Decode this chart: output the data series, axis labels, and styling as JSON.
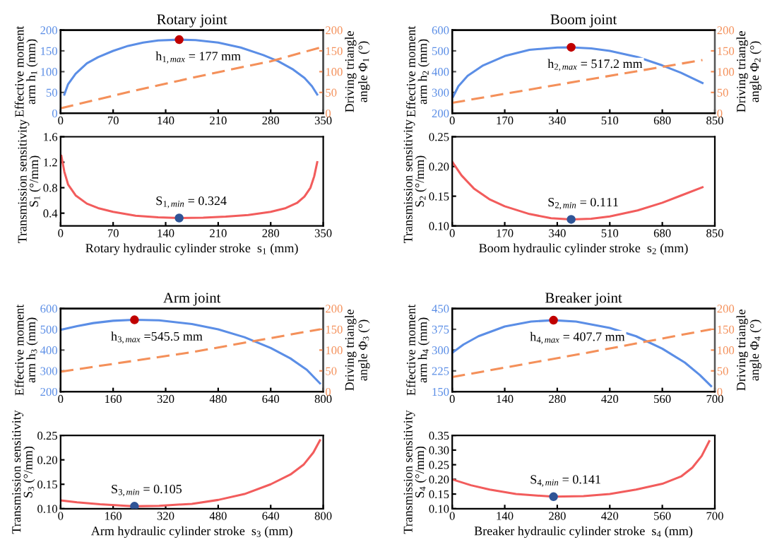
{
  "chart_data": [
    {
      "type": "line",
      "title": "Rotary joint",
      "ylabel": "Effective moment\narm h$_{1}$ (mm)",
      "y2label": "Driving triangle\nangle Φ$_{1}$ (°)",
      "xlim": [
        0,
        350
      ],
      "xticks": [
        0,
        70,
        140,
        210,
        280,
        350
      ],
      "ylim": [
        0,
        200
      ],
      "yticks": [
        0,
        50,
        100,
        150,
        200
      ],
      "y2lim": [
        0,
        200
      ],
      "y2ticks": [
        0,
        50,
        100,
        150,
        200
      ],
      "series": [
        {
          "color": "#5b8ee6",
          "x": [
            5,
            10,
            20,
            35,
            50,
            70,
            90,
            110,
            130,
            158,
            180,
            210,
            240,
            270,
            290,
            310,
            325,
            335,
            342
          ],
          "values": [
            45,
            70,
            95,
            120,
            135,
            150,
            162,
            170,
            175,
            177,
            176,
            170,
            158,
            140,
            125,
            105,
            85,
            65,
            45
          ]
        },
        {
          "color": "#f4905a",
          "axis": "y2",
          "line_style": "dashed",
          "x": [
            0,
            100,
            200,
            280,
            350
          ],
          "values": [
            12,
            55,
            95,
            125,
            160
          ]
        },
        {
          "type": "scatter",
          "marker": "circle",
          "color": "#c00000",
          "x": [
            158
          ],
          "values": [
            177
          ]
        }
      ],
      "annotations": [
        {
          "text": "h$_{1,max}$ = 177 mm",
          "x": 158,
          "y": 177
        }
      ]
    },
    {
      "type": "line",
      "ylabel": "Transmission sensitivity\nS$_{1}$ (°/mm)",
      "xlabel": "Rotary hydraulic cylinder stroke  s$_{1}$ (mm)",
      "xlim": [
        0,
        350
      ],
      "xticks": [
        0,
        70,
        140,
        210,
        280,
        350
      ],
      "ylim": [
        0.2,
        1.6
      ],
      "yticks": [
        0.4,
        0.8,
        1.2,
        1.6
      ],
      "series": [
        {
          "color": "#f25c5c",
          "x": [
            1,
            5,
            10,
            20,
            35,
            50,
            70,
            100,
            130,
            158,
            190,
            220,
            250,
            280,
            300,
            315,
            325,
            333,
            338,
            342
          ],
          "values": [
            1.3,
            1.05,
            0.85,
            0.68,
            0.55,
            0.48,
            0.42,
            0.36,
            0.335,
            0.324,
            0.33,
            0.345,
            0.37,
            0.42,
            0.48,
            0.56,
            0.66,
            0.8,
            0.98,
            1.2
          ]
        },
        {
          "type": "scatter",
          "marker": "circle",
          "color": "#2f5597",
          "x": [
            158
          ],
          "values": [
            0.324
          ]
        }
      ],
      "annotations": [
        {
          "text": "S$_{1,min}$ = 0.324",
          "x": 158,
          "y": 0.324
        }
      ]
    },
    {
      "type": "line",
      "title": "Boom joint",
      "ylabel": "Effective moment\narm h$_{2}$ (mm)",
      "y2label": "Driving triangle\nangle Φ$_{2}$ (°)",
      "xlim": [
        0,
        850
      ],
      "xticks": [
        0,
        170,
        340,
        510,
        680,
        850
      ],
      "ylim": [
        200,
        600
      ],
      "yticks": [
        200,
        300,
        400,
        500,
        600
      ],
      "y2lim": [
        0,
        200
      ],
      "y2ticks": [
        0,
        50,
        100,
        150,
        200
      ],
      "series": [
        {
          "color": "#5b8ee6",
          "x": [
            3,
            20,
            50,
            100,
            170,
            250,
            340,
            385,
            450,
            510,
            600,
            680,
            740,
            810
          ],
          "values": [
            280,
            330,
            380,
            430,
            475,
            505,
            516,
            517.2,
            512,
            500,
            470,
            430,
            395,
            345
          ]
        },
        {
          "color": "#f4905a",
          "axis": "y2",
          "line_style": "dashed",
          "x": [
            0,
            400,
            810
          ],
          "values": [
            25,
            76,
            128
          ]
        },
        {
          "type": "scatter",
          "marker": "circle",
          "color": "#c00000",
          "x": [
            385
          ],
          "values": [
            517.2
          ]
        }
      ],
      "annotations": [
        {
          "text": "h$_{2,max}$ = 517.2 mm",
          "x": 385,
          "y": 517.2
        }
      ]
    },
    {
      "type": "line",
      "ylabel": "Transmission sensitivity\nS$_{2}$ (°/mm)",
      "xlabel": "Boom hydraulic cylinder stroke  s$_{2}$ (mm)",
      "xlim": [
        0,
        850
      ],
      "xticks": [
        0,
        170,
        340,
        510,
        680,
        850
      ],
      "ylim": [
        0.1,
        0.25
      ],
      "yticks": [
        {
          "value": 0.1,
          "label": "0.10"
        },
        {
          "value": 0.15,
          "label": "0.15"
        },
        {
          "value": 0.2,
          "label": "0.20"
        },
        {
          "value": 0.25,
          "label": "0.25"
        }
      ],
      "series": [
        {
          "color": "#f25c5c",
          "x": [
            0,
            30,
            70,
            120,
            170,
            250,
            320,
            385,
            450,
            510,
            600,
            680,
            740,
            810
          ],
          "values": [
            0.208,
            0.185,
            0.163,
            0.145,
            0.133,
            0.12,
            0.113,
            0.111,
            0.112,
            0.116,
            0.126,
            0.139,
            0.151,
            0.165
          ]
        },
        {
          "type": "scatter",
          "marker": "circle",
          "color": "#2f5597",
          "x": [
            385
          ],
          "values": [
            0.111
          ]
        }
      ],
      "annotations": [
        {
          "text": "S$_{2,min}$ = 0.111",
          "x": 385,
          "y": 0.111
        }
      ]
    },
    {
      "type": "line",
      "title": "Arm joint",
      "ylabel": "Effective moment\narm h$_{3}$ (mm)",
      "y2label": "Driving triangle\nangle Φ$_{3}$ (°)",
      "xlim": [
        0,
        800
      ],
      "xticks": [
        0,
        160,
        320,
        480,
        640,
        800
      ],
      "ylim": [
        200,
        600
      ],
      "yticks": [
        200,
        300,
        400,
        500,
        600
      ],
      "y2lim": [
        0,
        200
      ],
      "y2ticks": [
        0,
        50,
        100,
        150,
        200
      ],
      "series": [
        {
          "color": "#5b8ee6",
          "x": [
            0,
            50,
            100,
            160,
            225,
            300,
            400,
            480,
            560,
            640,
            700,
            750,
            790
          ],
          "values": [
            497,
            515,
            530,
            541,
            545.5,
            543,
            525,
            500,
            462,
            410,
            360,
            305,
            240
          ]
        },
        {
          "color": "#f4905a",
          "axis": "y2",
          "line_style": "dashed",
          "x": [
            0,
            400,
            790
          ],
          "values": [
            48,
            95,
            150
          ]
        },
        {
          "type": "scatter",
          "marker": "circle",
          "color": "#c00000",
          "x": [
            225
          ],
          "values": [
            545.5
          ]
        }
      ],
      "annotations": [
        {
          "text": "h$_{3,max}$ =545.5 mm",
          "x": 225,
          "y": 545.5
        }
      ]
    },
    {
      "type": "line",
      "ylabel": "Transmission sensitivity\nS$_{3}$ (°/mm)",
      "xlabel": "Arm hydraulic cylinder stroke  s$_{3}$ (mm)",
      "xlim": [
        0,
        800
      ],
      "xticks": [
        0,
        160,
        320,
        480,
        640,
        800
      ],
      "ylim": [
        0.1,
        0.25
      ],
      "yticks": [
        {
          "value": 0.1,
          "label": "0.10"
        },
        {
          "value": 0.15,
          "label": "0.15"
        },
        {
          "value": 0.2,
          "label": "0.20"
        },
        {
          "value": 0.25,
          "label": "0.25"
        }
      ],
      "series": [
        {
          "color": "#f25c5c",
          "x": [
            0,
            50,
            120,
            200,
            225,
            300,
            400,
            480,
            560,
            640,
            700,
            740,
            770,
            790
          ],
          "values": [
            0.117,
            0.113,
            0.109,
            0.106,
            0.105,
            0.106,
            0.11,
            0.118,
            0.13,
            0.15,
            0.17,
            0.19,
            0.215,
            0.24
          ]
        },
        {
          "type": "scatter",
          "marker": "circle",
          "color": "#2f5597",
          "x": [
            225
          ],
          "values": [
            0.105
          ]
        }
      ],
      "annotations": [
        {
          "text": "S$_{3,min}$ = 0.105",
          "x": 225,
          "y": 0.105
        }
      ]
    },
    {
      "type": "line",
      "title": "Breaker joint",
      "ylabel": "Effective moment\narm h$_{4}$ (mm)",
      "y2label": "Driving triangle\nangle Φ$_{4}$ (°)",
      "xlim": [
        0,
        700
      ],
      "xticks": [
        0,
        140,
        280,
        420,
        560,
        700
      ],
      "ylim": [
        150,
        450
      ],
      "yticks": [
        150,
        225,
        300,
        375,
        450
      ],
      "y2lim": [
        0,
        200
      ],
      "y2ticks": [
        0,
        50,
        100,
        150,
        200
      ],
      "series": [
        {
          "color": "#5b8ee6",
          "x": [
            0,
            30,
            70,
            140,
            210,
            270,
            330,
            420,
            490,
            560,
            620,
            660,
            690
          ],
          "values": [
            290,
            320,
            350,
            385,
            403,
            407.7,
            403,
            380,
            350,
            305,
            255,
            210,
            170
          ]
        },
        {
          "color": "#f4905a",
          "axis": "y2",
          "line_style": "dashed",
          "x": [
            0,
            350,
            690
          ],
          "values": [
            35,
            92,
            150
          ]
        },
        {
          "type": "scatter",
          "marker": "circle",
          "color": "#c00000",
          "x": [
            270
          ],
          "values": [
            407.7
          ]
        }
      ],
      "annotations": [
        {
          "text": "h$_{4,max}$ = 407.7 mm",
          "x": 270,
          "y": 407.7
        }
      ]
    },
    {
      "type": "line",
      "ylabel": "Transmission sensitivity\nS$_{4}$ (°/mm)",
      "xlabel": "Breaker hydraulic cylinder stroke  s$_{4}$ (mm)",
      "xlim": [
        0,
        700
      ],
      "xticks": [
        0,
        140,
        280,
        420,
        560,
        700
      ],
      "ylim": [
        0.1,
        0.35
      ],
      "yticks": [
        {
          "value": 0.1,
          "label": "0.10"
        },
        {
          "value": 0.15,
          "label": "0.15"
        },
        {
          "value": 0.2,
          "label": "0.20"
        },
        {
          "value": 0.25,
          "label": "0.25"
        },
        {
          "value": 0.3,
          "label": "0.30"
        },
        {
          "value": 0.35,
          "label": "0.35"
        }
      ],
      "series": [
        {
          "color": "#f25c5c",
          "x": [
            0,
            50,
            100,
            170,
            270,
            350,
            420,
            490,
            560,
            610,
            640,
            665,
            685
          ],
          "values": [
            0.2,
            0.18,
            0.165,
            0.15,
            0.141,
            0.143,
            0.15,
            0.165,
            0.185,
            0.21,
            0.24,
            0.28,
            0.33
          ]
        },
        {
          "type": "scatter",
          "marker": "circle",
          "color": "#2f5597",
          "x": [
            270
          ],
          "values": [
            0.141
          ]
        }
      ],
      "annotations": [
        {
          "text": "S$_{4,min}$ = 0.141",
          "x": 270,
          "y": 0.141
        }
      ]
    }
  ]
}
